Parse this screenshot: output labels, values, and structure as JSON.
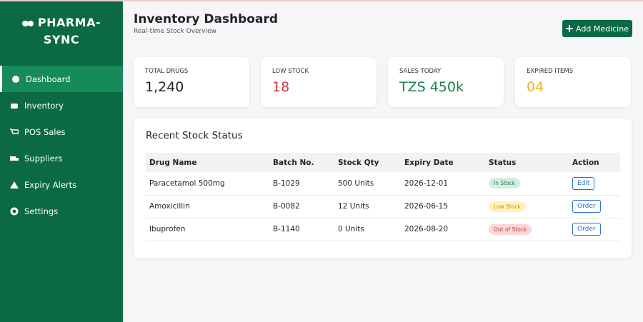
{
  "sidebar": {
    "brand_lines": [
      "PHARMA-",
      "SYNC"
    ],
    "nav": [
      {
        "label": "Dashboard",
        "active": true
      },
      {
        "label": "Inventory",
        "active": false
      },
      {
        "label": "POS Sales",
        "active": false
      },
      {
        "label": "Suppliers",
        "active": false
      },
      {
        "label": "Expiry Alerts",
        "active": false
      },
      {
        "label": "Settings",
        "active": false
      }
    ]
  },
  "header": {
    "title": "Inventory Dashboard",
    "subtitle": "Real-time Stock Overview",
    "button": "Add Medicine"
  },
  "cards": [
    {
      "label": "Total Drugs",
      "value": "1,240",
      "tone": "default"
    },
    {
      "label": "Low Stock",
      "value": "18",
      "tone": "danger"
    },
    {
      "label": "Sales Today",
      "value": "TZS 450k",
      "tone": "success"
    },
    {
      "label": "Expired Items",
      "value": "04",
      "tone": "warning"
    }
  ],
  "table": {
    "title": "Recent Stock Status",
    "columns": [
      "Drug Name",
      "Batch No.",
      "Stock Qty",
      "Expiry Date",
      "Status",
      "Action"
    ],
    "rows": [
      [
        "Paracetamol 500mg",
        "B-1029",
        "500 Units",
        "2026-12-01",
        {
          "text": "In Stock",
          "tone": "success"
        },
        "Edit"
      ],
      [
        "Amoxicillin",
        "B-0082",
        "12 Units",
        "2026-06-15",
        {
          "text": "Low Stock",
          "tone": "warning"
        },
        "Order"
      ],
      [
        "Ibuprofen",
        "B-1140",
        "0 Units",
        "2026-08-20",
        {
          "text": "Out of Stock",
          "tone": "danger"
        },
        "Order"
      ]
    ]
  }
}
